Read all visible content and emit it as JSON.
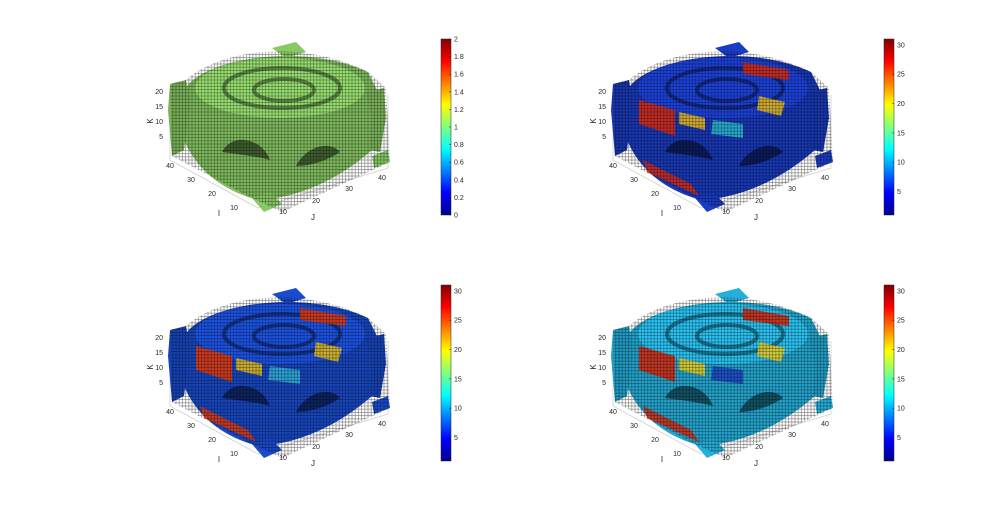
{
  "chart_data": [
    {
      "type": "3d-voxel",
      "panel": "top-left",
      "xlabel": "I",
      "ylabel": "J",
      "zlabel": "K",
      "i_ticks": [
        "10",
        "20",
        "30",
        "40"
      ],
      "j_ticks": [
        "10",
        "20",
        "30",
        "40"
      ],
      "k_ticks": [
        "5",
        "10",
        "15",
        "20"
      ],
      "colorbar": {
        "min": 0,
        "max": 2,
        "ticks": [
          "0",
          "0.2",
          "0.4",
          "0.6",
          "0.8",
          "1",
          "1.2",
          "1.4",
          "1.6",
          "1.8",
          "2"
        ]
      },
      "dominant_color": "#8fd26a",
      "accent_colors": []
    },
    {
      "type": "3d-voxel",
      "panel": "top-right",
      "xlabel": "I",
      "ylabel": "J",
      "zlabel": "K",
      "i_ticks": [
        "10",
        "20",
        "30",
        "40"
      ],
      "j_ticks": [
        "10",
        "20",
        "30",
        "40"
      ],
      "k_ticks": [
        "5",
        "10",
        "15",
        "20"
      ],
      "colorbar": {
        "min": 1,
        "max": 31,
        "ticks": [
          "5",
          "10",
          "15",
          "20",
          "25",
          "30"
        ]
      },
      "dominant_color": "#1b3fcf",
      "accent_colors": [
        "#d92b16",
        "#f1c21b",
        "#2ed3d9"
      ]
    },
    {
      "type": "3d-voxel",
      "panel": "bottom-left",
      "xlabel": "I",
      "ylabel": "J",
      "zlabel": "K",
      "i_ticks": [
        "10",
        "20",
        "30",
        "40"
      ],
      "j_ticks": [
        "10",
        "20",
        "30",
        "40"
      ],
      "k_ticks": [
        "5",
        "10",
        "15",
        "20"
      ],
      "colorbar": {
        "min": 1,
        "max": 31,
        "ticks": [
          "5",
          "10",
          "15",
          "20",
          "25",
          "30"
        ]
      },
      "dominant_color": "#1b4fd8",
      "accent_colors": [
        "#e23a10",
        "#f0c419",
        "#34c4e0"
      ]
    },
    {
      "type": "3d-voxel",
      "panel": "bottom-right",
      "xlabel": "I",
      "ylabel": "J",
      "zlabel": "K",
      "i_ticks": [
        "10",
        "20",
        "30",
        "40"
      ],
      "j_ticks": [
        "10",
        "20",
        "30",
        "40"
      ],
      "k_ticks": [
        "5",
        "10",
        "15",
        "20"
      ],
      "colorbar": {
        "min": 1,
        "max": 31,
        "ticks": [
          "5",
          "10",
          "15",
          "20",
          "25",
          "30"
        ]
      },
      "dominant_color": "#27b8e6",
      "accent_colors": [
        "#d82a12",
        "#f2d21e",
        "#1e36c8"
      ]
    }
  ]
}
